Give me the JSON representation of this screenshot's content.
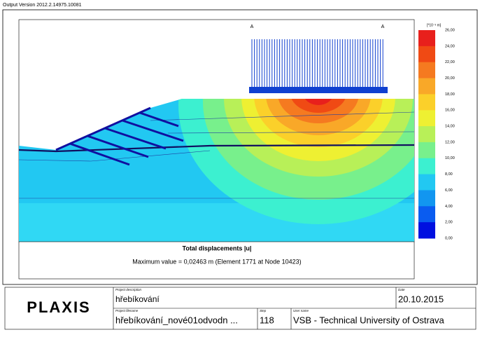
{
  "header": {
    "version": "Output Version 2012.2.14975.10081"
  },
  "plot": {
    "markers": [
      "A",
      "A"
    ],
    "caption": "Total displacements |u|",
    "max_value": "Maximum value = 0,02463 m (Element 1771 at Node 10423)"
  },
  "legend": {
    "unit": "[*10⁻³ m]",
    "labels": [
      "26,00",
      "24,00",
      "22,00",
      "20,00",
      "18,00",
      "16,00",
      "14,00",
      "12,00",
      "10,00",
      "8,00",
      "6,00",
      "4,00",
      "2,00",
      "0,00"
    ],
    "colors": [
      "#e8201c",
      "#f04a14",
      "#f57a20",
      "#f9a828",
      "#fbd02a",
      "#eef032",
      "#b8f058",
      "#78f08c",
      "#3cf0d0",
      "#22c8f2",
      "#1296f0",
      "#0a5cf0",
      "#0010e0"
    ]
  },
  "footer": {
    "logo": "PLAXIS",
    "project_description_label": "Project description",
    "project_description": "hřebíkování",
    "date_label": "Date",
    "date": "20.10.2015",
    "project_filename_label": "Project filename",
    "project_filename": "hřebíkování_nové01odvodn ...",
    "step_label": "Step",
    "step": "118",
    "user_name_label": "User name",
    "user_name": "VSB - Technical University of Ostrava"
  }
}
